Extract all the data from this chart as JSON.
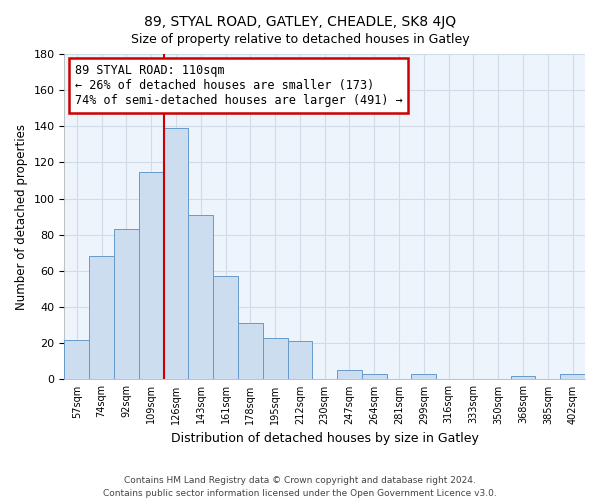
{
  "title": "89, STYAL ROAD, GATLEY, CHEADLE, SK8 4JQ",
  "subtitle": "Size of property relative to detached houses in Gatley",
  "xlabel": "Distribution of detached houses by size in Gatley",
  "ylabel": "Number of detached properties",
  "bar_color": "#ccddf0",
  "bar_edge_color": "#6699cc",
  "categories": [
    "57sqm",
    "74sqm",
    "92sqm",
    "109sqm",
    "126sqm",
    "143sqm",
    "161sqm",
    "178sqm",
    "195sqm",
    "212sqm",
    "230sqm",
    "247sqm",
    "264sqm",
    "281sqm",
    "299sqm",
    "316sqm",
    "333sqm",
    "350sqm",
    "368sqm",
    "385sqm",
    "402sqm"
  ],
  "values": [
    22,
    68,
    83,
    115,
    139,
    91,
    57,
    31,
    23,
    21,
    0,
    5,
    3,
    0,
    3,
    0,
    0,
    0,
    2,
    0,
    3
  ],
  "ylim": [
    0,
    180
  ],
  "yticks": [
    0,
    20,
    40,
    60,
    80,
    100,
    120,
    140,
    160,
    180
  ],
  "property_line_idx": 3,
  "annotation_title": "89 STYAL ROAD: 110sqm",
  "annotation_line2": "← 26% of detached houses are smaller (173)",
  "annotation_line3": "74% of semi-detached houses are larger (491) →",
  "annotation_box_color": "#ffffff",
  "annotation_box_edge": "#cc0000",
  "property_line_color": "#cc0000",
  "grid_color": "#d0dce8",
  "footer_line1": "Contains HM Land Registry data © Crown copyright and database right 2024.",
  "footer_line2": "Contains public sector information licensed under the Open Government Licence v3.0.",
  "bg_color": "#eef4fb"
}
